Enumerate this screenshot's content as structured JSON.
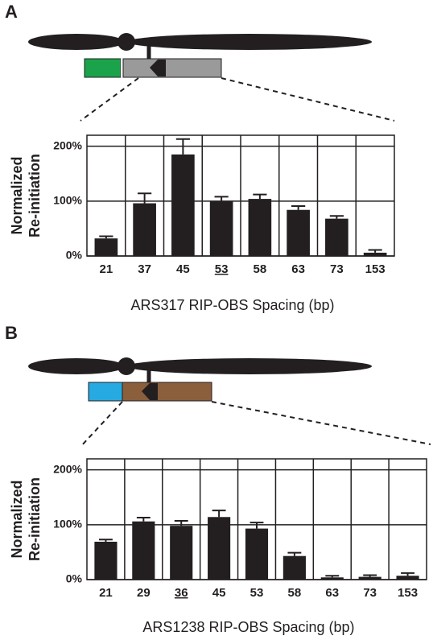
{
  "chart_data": [
    {
      "type": "bar",
      "panel": "A",
      "ylabel": [
        "Normalized",
        "Re-initiation"
      ],
      "xlabel": "ARS317 RIP-OBS Spacing (bp)",
      "categories": [
        "21",
        "37",
        "45",
        "53",
        "58",
        "63",
        "73",
        "153"
      ],
      "values": [
        32,
        96,
        185,
        100,
        104,
        84,
        68,
        6
      ],
      "errors": [
        4,
        18,
        28,
        8,
        8,
        7,
        5,
        5
      ],
      "underlined_index": 3,
      "color": "#231f20",
      "ylim": [
        0,
        220
      ],
      "yticks": [
        {
          "value": 0,
          "label": "0%"
        },
        {
          "value": 100,
          "label": "100%"
        },
        {
          "value": 200,
          "label": "200%"
        }
      ],
      "grid": true
    },
    {
      "type": "bar",
      "panel": "B",
      "ylabel": [
        "Normalized",
        "Re-initiation"
      ],
      "xlabel": "ARS1238 RIP-OBS Spacing (bp)",
      "categories": [
        "21",
        "29",
        "36",
        "45",
        "53",
        "58",
        "63",
        "73",
        "153"
      ],
      "values": [
        69,
        106,
        98,
        114,
        93,
        43,
        4,
        5,
        7
      ],
      "errors": [
        4,
        7,
        9,
        12,
        11,
        6,
        3,
        3,
        5
      ],
      "underlined_index": 2,
      "color": "#231f20",
      "ylim": [
        0,
        220
      ],
      "yticks": [
        {
          "value": 0,
          "label": "0%"
        },
        {
          "value": 100,
          "label": "100%"
        },
        {
          "value": 200,
          "label": "200%"
        }
      ],
      "grid": true
    }
  ]
}
